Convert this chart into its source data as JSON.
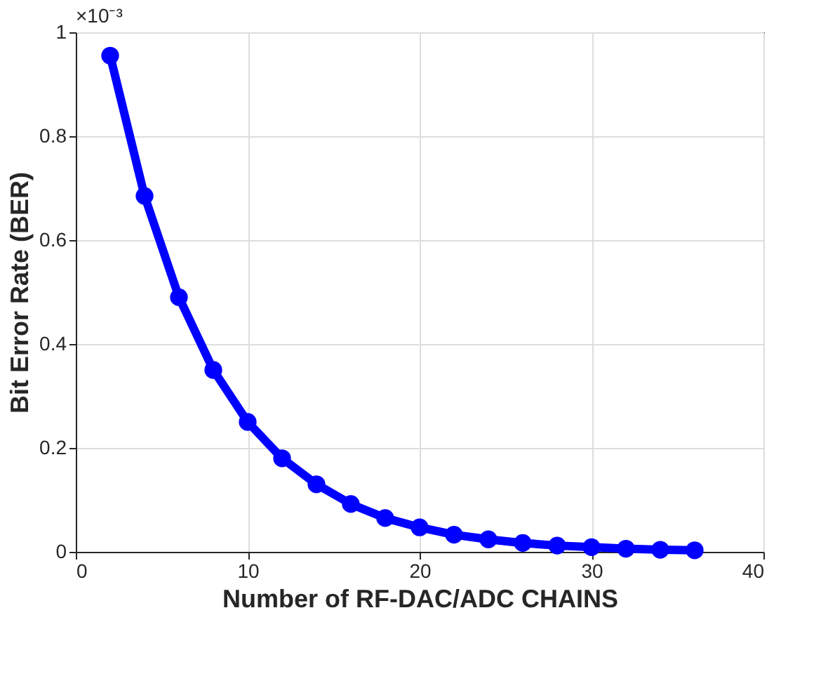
{
  "chart_data": {
    "type": "line",
    "xlabel": "Number of RF-DAC/ADC CHAINS",
    "ylabel": "Bit Error Rate (BER)",
    "annotations": [
      "×10⁻³"
    ],
    "x": [
      2,
      4,
      6,
      8,
      10,
      12,
      14,
      16,
      18,
      20,
      22,
      24,
      26,
      28,
      30,
      32,
      34,
      36
    ],
    "series": [
      {
        "color": "#0000ff",
        "values": [
          0.955,
          0.685,
          0.49,
          0.35,
          0.25,
          0.18,
          0.13,
          0.092,
          0.065,
          0.047,
          0.033,
          0.024,
          0.017,
          0.012,
          0.009,
          0.006,
          0.004,
          0.003
        ]
      }
    ],
    "xlim": [
      0,
      40
    ],
    "xticks": [
      0,
      10,
      20,
      30,
      40
    ],
    "ylim": [
      0,
      1
    ],
    "yticks": [
      0,
      0.2,
      0.4,
      0.6,
      0.8,
      1
    ],
    "grid": true,
    "marker": "circle",
    "line_style": "solid"
  }
}
